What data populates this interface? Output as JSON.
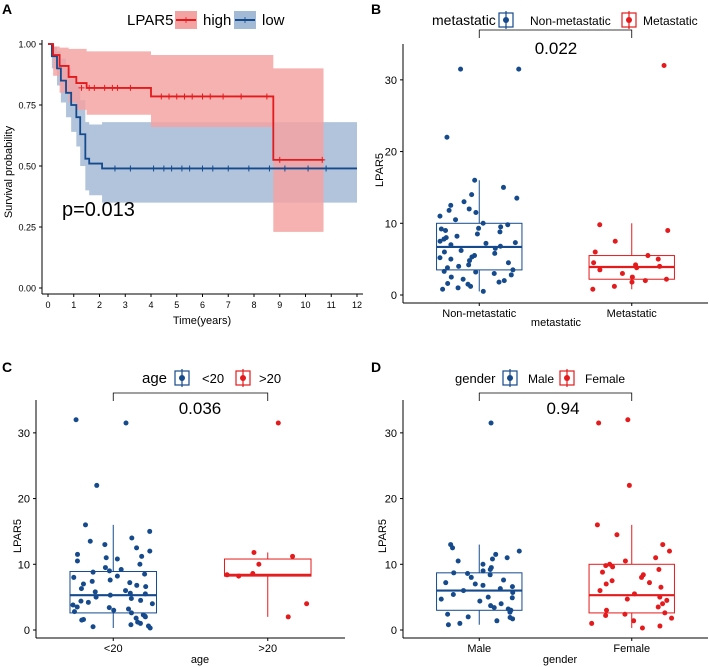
{
  "colors": {
    "high": "#e41a1c",
    "low": "#154a8c",
    "high_fill": "#f4a3a3",
    "low_fill": "#a3bad6"
  },
  "chart_data": [
    {
      "panel": "A",
      "type": "line",
      "subtype": "kaplan-meier",
      "legend_title": "LPAR5",
      "legend": [
        "high",
        "low"
      ],
      "xlabel": "Time(years)",
      "ylabel": "Survival probability",
      "xlim": [
        0,
        12
      ],
      "ylim": [
        0,
        1
      ],
      "xticks": [
        "0",
        "1",
        "2",
        "3",
        "4",
        "5",
        "6",
        "7",
        "8",
        "9",
        "10",
        "11",
        "12"
      ],
      "yticks": [
        "0.00",
        "0.25",
        "0.50",
        "0.75",
        "1.00"
      ],
      "annotation": "p=0.013",
      "series": [
        {
          "name": "high",
          "steps": [
            [
              0,
              1.0
            ],
            [
              0.2,
              0.955
            ],
            [
              0.45,
              0.91
            ],
            [
              0.8,
              0.865
            ],
            [
              1.1,
              0.84
            ],
            [
              1.5,
              0.82
            ],
            [
              4.0,
              0.785
            ],
            [
              8.7,
              0.785
            ],
            [
              8.75,
              0.525
            ],
            [
              10.7,
              0.525
            ]
          ],
          "censors": [
            [
              1.3,
              0.82
            ],
            [
              1.6,
              0.82
            ],
            [
              1.8,
              0.82
            ],
            [
              2.2,
              0.82
            ],
            [
              2.5,
              0.82
            ],
            [
              2.7,
              0.82
            ],
            [
              3.2,
              0.82
            ],
            [
              4.4,
              0.785
            ],
            [
              4.7,
              0.785
            ],
            [
              5.0,
              0.785
            ],
            [
              5.3,
              0.785
            ],
            [
              5.6,
              0.785
            ],
            [
              6.0,
              0.785
            ],
            [
              6.3,
              0.785
            ],
            [
              6.8,
              0.785
            ],
            [
              7.5,
              0.785
            ],
            [
              8.5,
              0.785
            ],
            [
              9.0,
              0.525
            ],
            [
              10.65,
              0.525
            ]
          ],
          "ci_upper": [
            [
              0,
              1.0
            ],
            [
              0.2,
              0.99
            ],
            [
              0.45,
              0.985
            ],
            [
              0.8,
              0.98
            ],
            [
              1.5,
              0.97
            ],
            [
              4.0,
              0.955
            ],
            [
              8.75,
              0.9
            ],
            [
              10.7,
              0.9
            ]
          ],
          "ci_lower": [
            [
              0,
              1.0
            ],
            [
              0.2,
              0.87
            ],
            [
              0.45,
              0.8
            ],
            [
              0.8,
              0.76
            ],
            [
              1.1,
              0.73
            ],
            [
              1.5,
              0.71
            ],
            [
              4.0,
              0.66
            ],
            [
              8.75,
              0.23
            ],
            [
              10.7,
              0.23
            ]
          ]
        },
        {
          "name": "low",
          "steps": [
            [
              0,
              1.0
            ],
            [
              0.15,
              0.95
            ],
            [
              0.35,
              0.9
            ],
            [
              0.5,
              0.85
            ],
            [
              0.7,
              0.8
            ],
            [
              0.9,
              0.75
            ],
            [
              1.1,
              0.7
            ],
            [
              1.25,
              0.63
            ],
            [
              1.45,
              0.53
            ],
            [
              1.6,
              0.51
            ],
            [
              2.1,
              0.49
            ],
            [
              12,
              0.49
            ]
          ],
          "censors": [
            [
              2.6,
              0.49
            ],
            [
              3.2,
              0.49
            ],
            [
              4.1,
              0.49
            ],
            [
              4.5,
              0.49
            ],
            [
              4.8,
              0.49
            ],
            [
              5.2,
              0.49
            ],
            [
              5.5,
              0.49
            ],
            [
              6.0,
              0.49
            ],
            [
              6.4,
              0.49
            ],
            [
              7.0,
              0.49
            ],
            [
              7.8,
              0.49
            ],
            [
              8.6,
              0.49
            ],
            [
              9.2,
              0.49
            ],
            [
              10.1,
              0.49
            ],
            [
              10.8,
              0.49
            ]
          ],
          "ci_upper": [
            [
              0,
              1.0
            ],
            [
              0.15,
              0.99
            ],
            [
              0.35,
              0.97
            ],
            [
              0.5,
              0.94
            ],
            [
              0.7,
              0.9
            ],
            [
              0.9,
              0.87
            ],
            [
              1.1,
              0.83
            ],
            [
              1.25,
              0.77
            ],
            [
              1.45,
              0.68
            ],
            [
              1.6,
              0.67
            ],
            [
              2.1,
              0.68
            ],
            [
              12,
              0.68
            ]
          ],
          "ci_lower": [
            [
              0,
              1.0
            ],
            [
              0.15,
              0.9
            ],
            [
              0.35,
              0.83
            ],
            [
              0.5,
              0.76
            ],
            [
              0.7,
              0.7
            ],
            [
              0.9,
              0.64
            ],
            [
              1.1,
              0.58
            ],
            [
              1.25,
              0.5
            ],
            [
              1.45,
              0.4
            ],
            [
              1.6,
              0.38
            ],
            [
              2.1,
              0.35
            ],
            [
              12,
              0.35
            ]
          ]
        }
      ]
    },
    {
      "panel": "B",
      "type": "box",
      "legend_title": "metastatic",
      "legend": [
        "Non-metastatic",
        "Metastatic"
      ],
      "categories": [
        "Non-metastatic",
        "Metastatic"
      ],
      "xlabel": "metastatic",
      "ylabel": "LPAR5",
      "ylim": [
        0,
        35
      ],
      "yticks": [
        0,
        10,
        20,
        30
      ],
      "pvalue": "0.022",
      "series": [
        {
          "name": "Non-metastatic",
          "q1": 3.5,
          "median": 6.7,
          "q3": 10.0,
          "whisker_low": 0.5,
          "whisker_high": 16.0,
          "points": [
            31.5,
            31.5,
            22.0,
            16.0,
            15.0,
            14.0,
            13.0,
            12.5,
            12.0,
            11.5,
            11.0,
            10.5,
            10.0,
            9.8,
            9.5,
            9.2,
            9.0,
            8.8,
            8.5,
            8.2,
            8.0,
            7.8,
            7.5,
            7.2,
            7.0,
            6.8,
            6.5,
            6.2,
            6.0,
            5.8,
            5.5,
            5.2,
            5.0,
            4.8,
            4.5,
            4.2,
            4.0,
            3.8,
            3.5,
            3.2,
            3.0,
            2.8,
            2.5,
            2.2,
            2.0,
            1.8,
            1.5,
            1.2,
            1.0,
            0.8,
            0.5,
            13.5,
            11.8,
            9.3,
            7.3,
            5.3,
            3.3,
            1.6
          ]
        },
        {
          "name": "Metastatic",
          "q1": 2.2,
          "median": 3.9,
          "q3": 5.5,
          "whisker_low": 0.8,
          "whisker_high": 10.0,
          "points": [
            32.0,
            9.8,
            9.0,
            7.5,
            6.0,
            5.5,
            5.0,
            4.5,
            4.2,
            4.0,
            3.8,
            3.5,
            3.0,
            2.5,
            2.2,
            2.0,
            1.8,
            1.2,
            0.8
          ]
        }
      ]
    },
    {
      "panel": "C",
      "type": "box",
      "legend_title": "age",
      "legend": [
        "<20",
        ">20"
      ],
      "categories": [
        "<20",
        ">20"
      ],
      "xlabel": "age",
      "ylabel": "LPAR5",
      "ylim": [
        0,
        35
      ],
      "yticks": [
        0,
        10,
        20,
        30
      ],
      "pvalue": "0.036",
      "series": [
        {
          "name": "<20",
          "q1": 2.6,
          "median": 5.3,
          "q3": 8.9,
          "whisker_low": 0.3,
          "whisker_high": 16.0,
          "points": [
            32.0,
            31.5,
            22.0,
            16.0,
            15.0,
            14.0,
            13.5,
            12.5,
            12.0,
            11.5,
            11.0,
            10.5,
            10.0,
            9.5,
            9.0,
            8.8,
            8.5,
            8.2,
            8.0,
            7.6,
            7.2,
            7.0,
            6.6,
            6.3,
            6.0,
            5.8,
            5.5,
            5.3,
            5.0,
            4.8,
            4.5,
            4.2,
            4.0,
            3.8,
            3.5,
            3.2,
            3.0,
            2.8,
            2.6,
            2.3,
            2.0,
            1.8,
            1.5,
            1.2,
            1.0,
            0.8,
            0.5,
            0.3,
            13.0,
            10.8,
            9.2,
            7.4,
            5.6,
            3.4,
            1.6,
            0.6,
            11.2,
            6.8,
            4.4,
            2.1
          ]
        },
        {
          "name": ">20",
          "q1": 8.2,
          "median": 8.4,
          "q3": 10.8,
          "whisker_low": 2.0,
          "whisker_high": 11.8,
          "points": [
            31.5,
            11.8,
            11.2,
            10.0,
            8.6,
            8.4,
            8.2,
            4.0,
            2.0
          ]
        }
      ]
    },
    {
      "panel": "D",
      "type": "box",
      "legend_title": "gender",
      "legend": [
        "Male",
        "Female"
      ],
      "categories": [
        "Male",
        "Female"
      ],
      "xlabel": "gender",
      "ylabel": "LPAR5",
      "ylim": [
        0,
        35
      ],
      "yticks": [
        0,
        10,
        20,
        30
      ],
      "pvalue": "0.94",
      "series": [
        {
          "name": "Male",
          "q1": 3.0,
          "median": 6.0,
          "q3": 8.7,
          "whisker_low": 0.8,
          "whisker_high": 13.0,
          "points": [
            31.5,
            13.0,
            12.5,
            12.0,
            11.5,
            11.0,
            10.5,
            10.0,
            9.5,
            9.2,
            9.0,
            8.7,
            8.4,
            8.0,
            7.6,
            7.2,
            7.0,
            6.6,
            6.3,
            6.0,
            5.7,
            5.4,
            5.0,
            4.7,
            4.4,
            4.0,
            3.7,
            3.4,
            3.0,
            2.7,
            2.4,
            2.0,
            1.7,
            1.4,
            1.0,
            0.8,
            10.8,
            8.6,
            6.8,
            4.9,
            3.2,
            1.9
          ]
        },
        {
          "name": "Female",
          "q1": 2.6,
          "median": 5.3,
          "q3": 10.0,
          "whisker_low": 0.3,
          "whisker_high": 16.0,
          "points": [
            32.0,
            31.5,
            22.0,
            16.0,
            14.5,
            13.0,
            12.0,
            11.0,
            10.5,
            10.0,
            9.6,
            9.2,
            8.8,
            8.4,
            8.0,
            7.5,
            7.0,
            6.5,
            6.0,
            5.5,
            5.0,
            4.5,
            4.0,
            3.5,
            3.0,
            2.6,
            2.2,
            1.8,
            1.4,
            1.0,
            0.6,
            0.3,
            9.8,
            7.2,
            4.7,
            2.4
          ]
        }
      ]
    }
  ]
}
